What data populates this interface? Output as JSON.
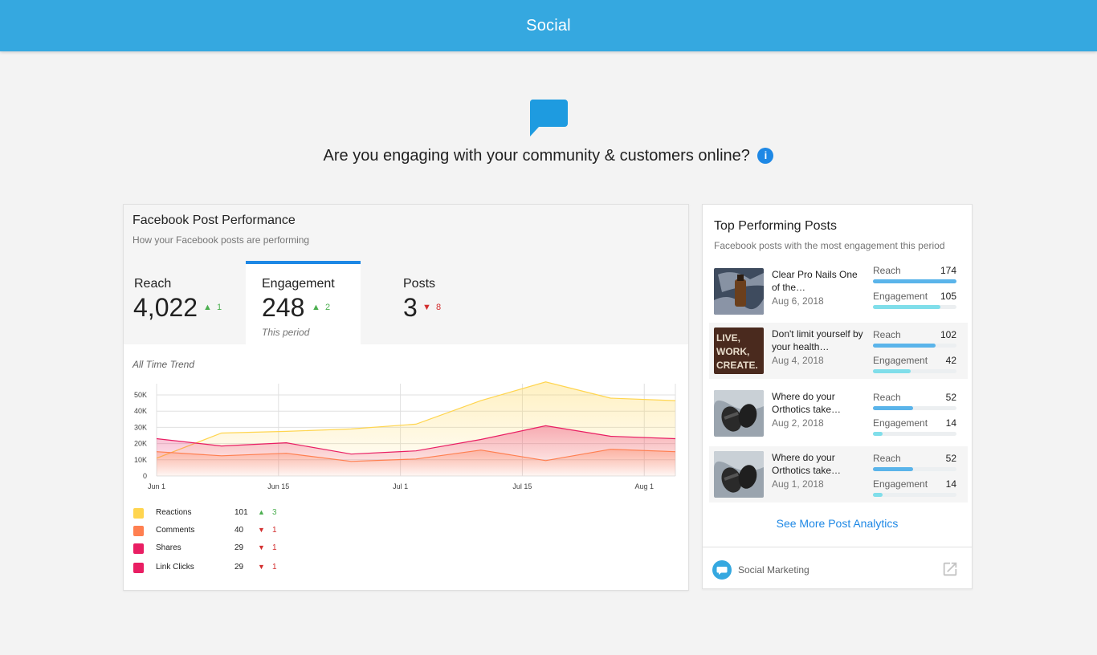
{
  "header": {
    "title": "Social"
  },
  "hero": {
    "question": "Are you engaging with your community & customers online?",
    "info_icon": "info-icon"
  },
  "performance": {
    "title": "Facebook Post Performance",
    "subtitle": "How your Facebook posts are performing",
    "metrics": [
      {
        "label": "Reach",
        "value": "4,022",
        "delta": "1",
        "direction": "up"
      },
      {
        "label": "Engagement",
        "value": "248",
        "delta": "2",
        "direction": "up",
        "period": "This period"
      },
      {
        "label": "Posts",
        "value": "3",
        "delta": "8",
        "direction": "down"
      }
    ],
    "trend_label": "All Time Trend",
    "legend": [
      {
        "name": "Reactions",
        "value": "101",
        "delta": "3",
        "direction": "up",
        "color": "#ffd54f"
      },
      {
        "name": "Comments",
        "value": "40",
        "delta": "1",
        "direction": "down",
        "color": "#ff7f50"
      },
      {
        "name": "Shares",
        "value": "29",
        "delta": "1",
        "direction": "down",
        "color": "#e91e63"
      },
      {
        "name": "Link Clicks",
        "value": "29",
        "delta": "1",
        "direction": "down",
        "color": "#e91e63"
      }
    ]
  },
  "chart_data": {
    "type": "area",
    "title": "All Time Trend",
    "x_tick_labels": [
      "Jun 1",
      "Jun 15",
      "Jul 1",
      "Jul 15",
      "Aug 1"
    ],
    "y_tick_labels": [
      "0",
      "10K",
      "20K",
      "30K",
      "40K",
      "50K"
    ],
    "ylim": [
      0,
      50000
    ],
    "grid": true,
    "x": [
      "May 31",
      "Jun 7",
      "Jun 15",
      "Jun 24",
      "Jul 1",
      "Jul 10",
      "Jul 19",
      "Jul 28",
      "Aug 6"
    ],
    "series": [
      {
        "name": "Reactions",
        "color": "#ffd54f",
        "values": [
          11000,
          26500,
          27500,
          29000,
          32000,
          46500,
          58000,
          48000,
          46500
        ]
      },
      {
        "name": "Shares",
        "color": "#e91e63",
        "values": [
          23000,
          18500,
          20500,
          13500,
          15500,
          22500,
          31000,
          24500,
          23000
        ]
      },
      {
        "name": "Comments",
        "color": "#ff7f50",
        "values": [
          15000,
          12500,
          14000,
          9000,
          10500,
          16000,
          9500,
          16500,
          15000
        ]
      }
    ]
  },
  "top_posts": {
    "title": "Top Performing Posts",
    "subtitle": "Facebook posts with the most engagement this period",
    "reach_label": "Reach",
    "engagement_label": "Engagement",
    "posts": [
      {
        "title": "Clear Pro Nails One of the…",
        "date": "Aug 6, 2018",
        "reach": "174",
        "engagement": "105",
        "reach_fraction": 1.0,
        "engagement_fraction": 0.81,
        "thumb": "bottle-image"
      },
      {
        "title": "Don't limit yourself by your health…",
        "date": "Aug 4, 2018",
        "reach": "102",
        "engagement": "42",
        "reach_fraction": 0.75,
        "engagement_fraction": 0.45,
        "thumb": "live-work-create-image"
      },
      {
        "title": "Where do your Orthotics take…",
        "date": "Aug 2, 2018",
        "reach": "52",
        "engagement": "14",
        "reach_fraction": 0.48,
        "engagement_fraction": 0.12,
        "thumb": "sandals-image"
      },
      {
        "title": "Where do your Orthotics take…",
        "date": "Aug 1, 2018",
        "reach": "52",
        "engagement": "14",
        "reach_fraction": 0.48,
        "engagement_fraction": 0.12,
        "thumb": "sandals-image"
      }
    ],
    "see_more": "See More Post Analytics",
    "footer_name": "Social Marketing",
    "colors": {
      "reach_bar": "#5ab4ea",
      "engagement_bar": "#80deea"
    }
  }
}
